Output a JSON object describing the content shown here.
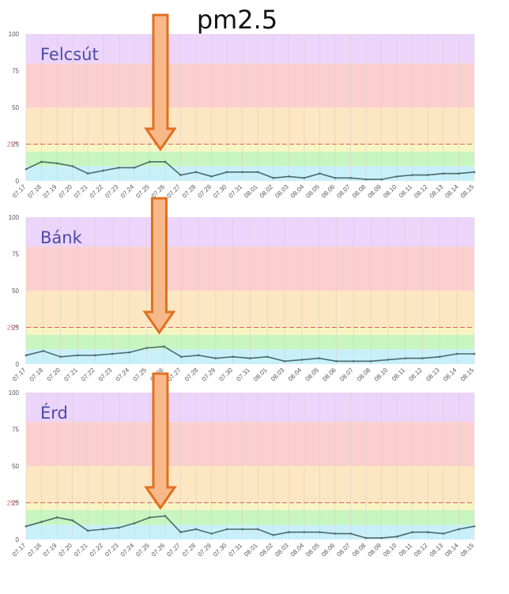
{
  "title": "pm2.5",
  "colors": {
    "band_0_10": "#c8f0fa",
    "band_10_20": "#c8f5c0",
    "band_20_25": "#f7f5c2",
    "band_25_50": "#fde6c2",
    "band_50_80": "#fccfcf",
    "band_80_100": "#ecd4fa",
    "line": "#4d6b6b",
    "threshold": "#e06060",
    "arrow_fill": "#f7b98a",
    "arrow_stroke": "#e07020",
    "label": "#4a4aa8"
  },
  "chart_data": [
    {
      "type": "line",
      "label": "Felcsút",
      "ylim": [
        0,
        100
      ],
      "yticks": [
        0,
        25,
        50,
        75,
        100
      ],
      "threshold": 25,
      "threshold_label": "25**",
      "highlight_category": "07.26",
      "categories": [
        "07.17",
        "07.18",
        "07.19",
        "07.20",
        "07.21",
        "07.22",
        "07.23",
        "07.24",
        "07.25",
        "07.26",
        "07.27",
        "07.28",
        "07.29",
        "07.30",
        "07.31",
        "08.01",
        "08.02",
        "08.03",
        "08.04",
        "08.05",
        "08.06",
        "08.07",
        "08.08",
        "08.09",
        "08.10",
        "08.11",
        "08.12",
        "08.13",
        "08.14",
        "08.15"
      ],
      "values": [
        8,
        13,
        12,
        10,
        5,
        7,
        9,
        9,
        13,
        13,
        4,
        6,
        3,
        6,
        6,
        6,
        2,
        3,
        2,
        5,
        2,
        2,
        1,
        1,
        3,
        4,
        4,
        5,
        5,
        6
      ]
    },
    {
      "type": "line",
      "label": "Bánk",
      "ylim": [
        0,
        100
      ],
      "yticks": [
        0,
        25,
        50,
        75,
        100
      ],
      "threshold": 25,
      "threshold_label": "25**",
      "highlight_category": "07.26",
      "categories": [
        "07.17",
        "07.18",
        "07.20",
        "07.21",
        "07.22",
        "07.23",
        "07.24",
        "07.25",
        "07.26",
        "07.27",
        "07.28",
        "07.29",
        "07.30",
        "07.31",
        "08.01",
        "08.03",
        "08.04",
        "08.05",
        "08.06",
        "08.07",
        "08.08",
        "08.10",
        "08.11",
        "08.12",
        "08.13",
        "08.14",
        "08.15"
      ],
      "values": [
        6,
        9,
        5,
        6,
        6,
        7,
        8,
        11,
        12,
        5,
        6,
        4,
        5,
        4,
        5,
        2,
        3,
        4,
        2,
        2,
        2,
        3,
        4,
        4,
        5,
        7,
        7
      ]
    },
    {
      "type": "line",
      "label": "Érd",
      "ylim": [
        0,
        100
      ],
      "yticks": [
        0,
        25,
        50,
        75,
        100
      ],
      "threshold": 25,
      "threshold_label": "25**",
      "highlight_category": "07.26",
      "categories": [
        "07.17",
        "07.18",
        "07.19",
        "07.20",
        "07.21",
        "07.22",
        "07.23",
        "07.24",
        "07.25",
        "07.26",
        "07.27",
        "07.28",
        "07.29",
        "07.30",
        "07.31",
        "08.01",
        "08.02",
        "08.03",
        "08.04",
        "08.05",
        "08.06",
        "08.07",
        "08.08",
        "08.09",
        "08.10",
        "08.11",
        "08.12",
        "08.13",
        "08.14",
        "08.15"
      ],
      "values": [
        9,
        12,
        15,
        13,
        6,
        7,
        8,
        11,
        15,
        16,
        5,
        7,
        4,
        7,
        7,
        7,
        3,
        5,
        5,
        5,
        4,
        4,
        1,
        1,
        2,
        5,
        5,
        4,
        7,
        9
      ]
    }
  ]
}
